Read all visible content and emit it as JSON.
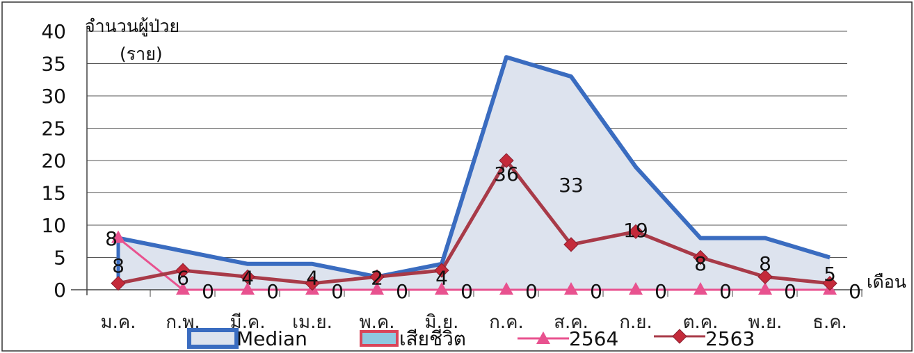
{
  "chart_data": {
    "type": "line",
    "ylabel_line1": "จำนวนผู้ป่วย",
    "ylabel_line2": "(ราย)",
    "xlabel": "เดือน",
    "ylim": [
      0,
      40
    ],
    "yticks": [
      "0",
      "5",
      "10",
      "15",
      "20",
      "25",
      "30",
      "35",
      "40"
    ],
    "grid": true,
    "legend_position": "bottom",
    "categories": [
      "ม.ค.",
      "ก.พ.",
      "มี.ค.",
      "เม.ย.",
      "พ.ค.",
      "มิ.ย.",
      "ก.ค.",
      "ส.ค.",
      "ก.ย.",
      "ต.ค.",
      "พ.ย.",
      "ธ.ค."
    ],
    "series": [
      {
        "name": "Median",
        "kind": "area",
        "values": [
          8,
          6,
          4,
          4,
          2,
          4,
          36,
          33,
          19,
          8,
          8,
          5
        ],
        "labels": [
          "8",
          "6",
          "4",
          "4",
          "2",
          "4",
          "36",
          "33",
          "19",
          "8",
          "8",
          "5"
        ],
        "color": "#3a6cc0",
        "fill": "#dde3ee"
      },
      {
        "name": "เสียชีวิต",
        "kind": "bar",
        "values": [
          0,
          0,
          0,
          0,
          0,
          0,
          0,
          0,
          0,
          0,
          0,
          0
        ],
        "labels": [
          "0",
          "0",
          "0",
          "0",
          "0",
          "0",
          "0",
          "0",
          "0",
          "0",
          "0",
          "0"
        ],
        "color": "#d9455a",
        "fill": "#8fc8e0"
      },
      {
        "name": "2564",
        "kind": "line",
        "values": [
          8,
          0,
          0,
          0,
          0,
          0,
          0,
          0,
          0,
          0,
          0,
          0
        ],
        "labels": [
          "8"
        ],
        "color": "#e8528f",
        "marker": "triangle"
      },
      {
        "name": "2563",
        "kind": "line",
        "values": [
          1,
          3,
          2,
          1,
          2,
          3,
          20,
          7,
          9,
          5,
          2,
          1
        ],
        "color": "#a83a48",
        "marker": "diamond"
      }
    ]
  }
}
